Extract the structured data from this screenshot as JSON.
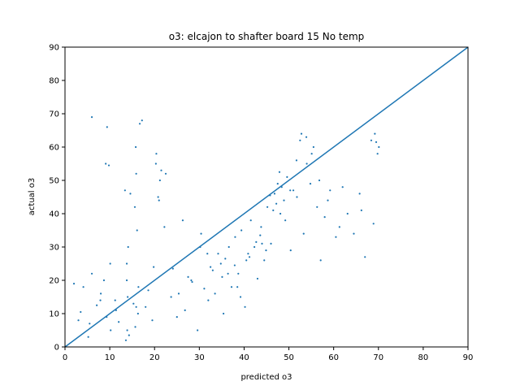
{
  "chart_data": {
    "type": "scatter",
    "title": "o3: elcajon to shafter board 15 No temp",
    "xlabel": "predicted o3",
    "ylabel": "actual o3",
    "xlim": [
      0,
      90
    ],
    "ylim": [
      0,
      90
    ],
    "xticks": [
      "0",
      "10",
      "20",
      "30",
      "40",
      "50",
      "60",
      "70",
      "80",
      "90"
    ],
    "yticks": [
      "0",
      "10",
      "20",
      "30",
      "40",
      "50",
      "60",
      "70",
      "80",
      "90"
    ],
    "grid": false,
    "legend": "none",
    "series": [
      {
        "kind": "points",
        "color": "#1f77b4",
        "x": [
          2.0,
          3.5,
          5.2,
          6.0,
          7.1,
          8.0,
          9.3,
          10.1,
          11.2,
          12.0,
          13.4,
          13.8,
          14.1,
          14.6,
          15.3,
          15.9,
          16.4,
          17.2,
          18.0,
          19.5,
          20.3,
          21.0,
          22.5,
          24.1,
          25.4,
          26.3,
          27.5,
          28.2,
          29.6,
          30.4,
          31.1,
          32.5,
          33.0,
          34.2,
          35.1,
          35.8,
          36.6,
          37.2,
          38.0,
          38.7,
          39.4,
          40.2,
          40.9,
          41.5,
          42.3,
          43.0,
          43.8,
          44.5,
          45.2,
          46.0,
          46.8,
          47.5,
          48.1,
          48.9,
          49.6,
          50.4,
          51.0,
          51.8,
          52.5,
          53.3,
          54.0,
          54.8,
          55.5,
          56.3,
          57.1,
          58.0,
          59.2,
          60.5,
          62.0,
          63.1,
          64.5,
          65.8,
          67.0,
          68.4,
          69.2,
          69.8,
          70.1,
          6.0,
          9.4,
          13.9,
          15.8,
          16.7,
          20.4,
          21.2,
          49.2,
          50.3,
          52.8,
          55.1,
          13.6,
          14.3,
          15.7,
          16.1,
          13.8,
          15.6,
          36.4,
          38.5,
          41.2,
          44.0,
          46.5,
          47.2,
          48.4,
          45.8,
          32.0,
          33.5,
          34.8,
          30.2,
          28.4,
          26.8,
          25.0,
          23.7,
          18.6,
          19.8,
          11.4,
          10.2,
          8.7,
          7.9,
          5.5,
          4.1,
          3.0,
          40.5,
          42.7,
          44.9,
          37.9,
          39.2,
          35.4,
          31.8,
          43.6,
          47.9,
          51.7,
          53.9,
          56.8,
          58.7,
          61.3,
          66.2,
          68.9,
          69.5,
          9.1,
          9.8,
          14.0,
          15.9,
          16.3,
          20.8,
          21.5,
          22.2
        ],
        "y": [
          19.0,
          10.5,
          3.0,
          22.0,
          12.5,
          16.0,
          9.0,
          25.0,
          14.0,
          7.5,
          47.0,
          20.0,
          30.0,
          46.0,
          13.0,
          52.0,
          18.0,
          68.0,
          12.0,
          8.0,
          55.0,
          44.0,
          52.0,
          23.5,
          16.0,
          38.0,
          21.0,
          20.0,
          5.0,
          34.0,
          17.5,
          24.0,
          23.0,
          28.0,
          21.0,
          26.5,
          30.0,
          18.0,
          33.0,
          22.0,
          35.0,
          12.0,
          28.0,
          38.0,
          30.0,
          20.5,
          36.0,
          26.0,
          42.0,
          31.0,
          46.0,
          49.0,
          40.0,
          44.0,
          51.0,
          29.0,
          47.0,
          45.0,
          62.0,
          34.0,
          55.0,
          49.0,
          60.0,
          42.0,
          26.0,
          39.0,
          47.0,
          33.0,
          48.0,
          40.0,
          34.0,
          46.0,
          27.0,
          62.0,
          64.0,
          58.0,
          60.0,
          69.0,
          66.0,
          5.0,
          60.0,
          67.0,
          58.0,
          50.0,
          38.0,
          47.0,
          64.0,
          58.0,
          2.0,
          3.5,
          6.0,
          35.0,
          25.0,
          42.0,
          22.0,
          18.0,
          27.0,
          31.0,
          41.0,
          43.0,
          48.0,
          45.5,
          14.0,
          16.0,
          25.0,
          30.0,
          19.5,
          11.0,
          9.0,
          15.0,
          17.0,
          24.0,
          11.0,
          5.0,
          20.0,
          14.0,
          7.0,
          18.0,
          8.0,
          26.0,
          31.5,
          29.0,
          24.5,
          15.0,
          10.0,
          28.0,
          33.5,
          52.5,
          56.0,
          63.0,
          50.0,
          44.0,
          36.0,
          41.0,
          37.0,
          61.5,
          55.0,
          54.5,
          15.0,
          12.0,
          10.0,
          45.0,
          53.0,
          36.0
        ]
      },
      {
        "kind": "line",
        "color": "#1f77b4",
        "x": [
          0,
          90
        ],
        "y": [
          0,
          90
        ]
      }
    ]
  }
}
